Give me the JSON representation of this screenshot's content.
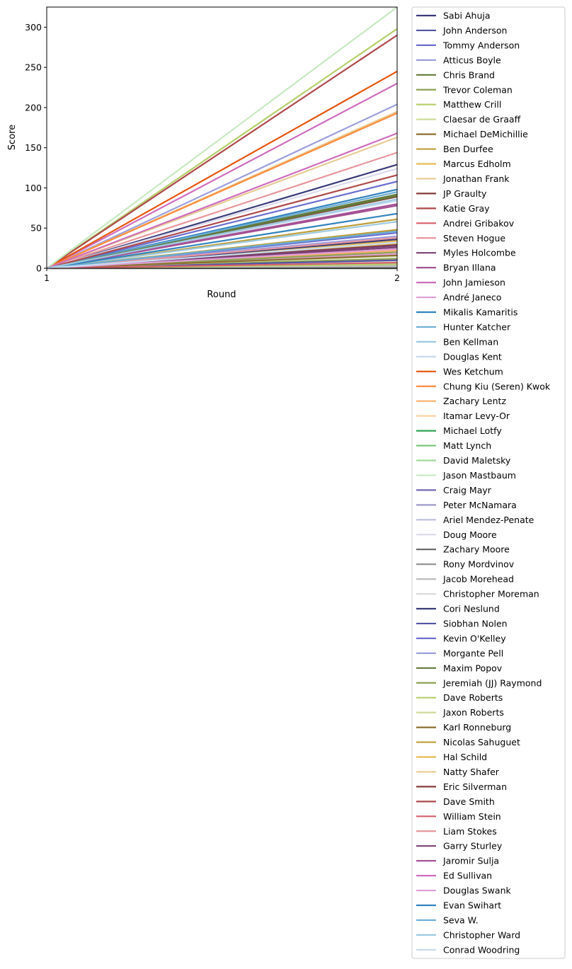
{
  "chart_data": {
    "type": "line",
    "title": "",
    "xlabel": "Round",
    "ylabel": "Score",
    "x": [
      1,
      2
    ],
    "xticks": [
      "1",
      "2"
    ],
    "xlim": [
      1,
      2
    ],
    "ylim": [
      0,
      325
    ],
    "yticks": [
      "0",
      "50",
      "100",
      "150",
      "200",
      "250",
      "300"
    ],
    "grid": false,
    "legend_placement": "outside-right",
    "series": [
      {
        "name": "Sabi Ahuja",
        "color": "#393b79",
        "values": [
          0,
          129
        ]
      },
      {
        "name": "John Anderson",
        "color": "#5254a3",
        "values": [
          0,
          30
        ]
      },
      {
        "name": "Tommy Anderson",
        "color": "#6b6ecf",
        "values": [
          0,
          108
        ]
      },
      {
        "name": "Atticus Boyle",
        "color": "#9c9ede",
        "values": [
          0,
          204
        ]
      },
      {
        "name": "Chris Brand",
        "color": "#637939",
        "values": [
          0,
          92
        ]
      },
      {
        "name": "Trevor Coleman",
        "color": "#8ca252",
        "values": [
          0,
          12
        ]
      },
      {
        "name": "Matthew Crill",
        "color": "#b5cf6b",
        "values": [
          0,
          298
        ]
      },
      {
        "name": "Claesar de Graaff",
        "color": "#cedb9c",
        "values": [
          0,
          8
        ]
      },
      {
        "name": "Michael DeMichillie",
        "color": "#8c6d31",
        "values": [
          0,
          47
        ]
      },
      {
        "name": "Ben Durfee",
        "color": "#bd9e39",
        "values": [
          0,
          61
        ]
      },
      {
        "name": "Marcus Edholm",
        "color": "#e7ba52",
        "values": [
          0,
          34
        ]
      },
      {
        "name": "Jonathan Frank",
        "color": "#e7cb94",
        "values": [
          0,
          195
        ]
      },
      {
        "name": "JP Graulty",
        "color": "#843c39",
        "values": [
          0,
          89
        ]
      },
      {
        "name": "Katie Gray",
        "color": "#ad494a",
        "values": [
          0,
          290
        ]
      },
      {
        "name": "Andrei Gribakov",
        "color": "#d6616b",
        "values": [
          0,
          5
        ]
      },
      {
        "name": "Steven Hogue",
        "color": "#e7969c",
        "values": [
          0,
          144
        ]
      },
      {
        "name": "Myles Holcombe",
        "color": "#7b4173",
        "values": [
          0,
          26
        ]
      },
      {
        "name": "Bryan Illana",
        "color": "#a55194",
        "values": [
          0,
          78
        ]
      },
      {
        "name": "John Jamieson",
        "color": "#ce6dbd",
        "values": [
          0,
          230
        ]
      },
      {
        "name": "André Janeco",
        "color": "#de9ed6",
        "values": [
          0,
          18
        ]
      },
      {
        "name": "Mikalis Kamaritis",
        "color": "#3182bd",
        "values": [
          0,
          98
        ]
      },
      {
        "name": "Hunter Katcher",
        "color": "#6baed6",
        "values": [
          0,
          95
        ]
      },
      {
        "name": "Ben Kellman",
        "color": "#9ecae1",
        "values": [
          0,
          58
        ]
      },
      {
        "name": "Douglas Kent",
        "color": "#c6dbef",
        "values": [
          0,
          84
        ]
      },
      {
        "name": "Wes Ketchum",
        "color": "#e6550d",
        "values": [
          0,
          245
        ]
      },
      {
        "name": "Chung Kiu (Seren) Kwok",
        "color": "#fd8d3c",
        "values": [
          0,
          193
        ]
      },
      {
        "name": "Zachary Lentz",
        "color": "#fdae6b",
        "values": [
          0,
          22
        ]
      },
      {
        "name": "Itamar Levy-Or",
        "color": "#fdd0a2",
        "values": [
          0,
          2
        ]
      },
      {
        "name": "Michael Lotfy",
        "color": "#31a354",
        "values": [
          0,
          0
        ]
      },
      {
        "name": "Matt Lynch",
        "color": "#74c476",
        "values": [
          0,
          3
        ]
      },
      {
        "name": "David Maletsky",
        "color": "#a1d99b",
        "values": [
          0,
          6
        ]
      },
      {
        "name": "Jason Mastbaum",
        "color": "#c7e9c0",
        "values": [
          0,
          325
        ]
      },
      {
        "name": "Craig Mayr",
        "color": "#756bb1",
        "values": [
          0,
          1
        ]
      },
      {
        "name": "Peter McNamara",
        "color": "#9e9ac8",
        "values": [
          0,
          4
        ]
      },
      {
        "name": "Ariel Mendez-Penate",
        "color": "#bcbddc",
        "values": [
          0,
          2
        ]
      },
      {
        "name": "Doug Moore",
        "color": "#dadaeb",
        "values": [
          0,
          124
        ]
      },
      {
        "name": "Zachary Moore",
        "color": "#636363",
        "values": [
          0,
          0
        ]
      },
      {
        "name": "Rony Mordvinov",
        "color": "#969696",
        "values": [
          0,
          1
        ]
      },
      {
        "name": "Jacob Morehead",
        "color": "#bdbdbd",
        "values": [
          0,
          3
        ]
      },
      {
        "name": "Christopher Moreman",
        "color": "#d9d9d9",
        "values": [
          0,
          9
        ]
      },
      {
        "name": "Cori Neslund",
        "color": "#393b79",
        "values": [
          0,
          36
        ]
      },
      {
        "name": "Siobhan Nolen",
        "color": "#5254a3",
        "values": [
          0,
          10
        ]
      },
      {
        "name": "Kevin O'Kelley",
        "color": "#6b6ecf",
        "values": [
          0,
          44
        ]
      },
      {
        "name": "Morgante Pell",
        "color": "#9c9ede",
        "values": [
          0,
          40
        ]
      },
      {
        "name": "Maxim Popov",
        "color": "#637939",
        "values": [
          0,
          90
        ]
      },
      {
        "name": "Jeremiah (JJ) Raymond",
        "color": "#8ca252",
        "values": [
          0,
          20
        ]
      },
      {
        "name": "Dave Roberts",
        "color": "#b5cf6b",
        "values": [
          0,
          5
        ]
      },
      {
        "name": "Jaxon Roberts",
        "color": "#cedb9c",
        "values": [
          0,
          15
        ]
      },
      {
        "name": "Karl Ronneburg",
        "color": "#8c6d31",
        "values": [
          0,
          16
        ]
      },
      {
        "name": "Nicolas Sahuguet",
        "color": "#bd9e39",
        "values": [
          0,
          48
        ]
      },
      {
        "name": "Hal Schild",
        "color": "#e7ba52",
        "values": [
          0,
          31
        ]
      },
      {
        "name": "Natty Shafer",
        "color": "#e7cb94",
        "values": [
          0,
          163
        ]
      },
      {
        "name": "Eric Silverman",
        "color": "#843c39",
        "values": [
          0,
          29
        ]
      },
      {
        "name": "Dave Smith",
        "color": "#ad494a",
        "values": [
          0,
          116
        ]
      },
      {
        "name": "William Stein",
        "color": "#d6616b",
        "values": [
          0,
          7
        ]
      },
      {
        "name": "Liam Stokes",
        "color": "#e7969c",
        "values": [
          0,
          38
        ]
      },
      {
        "name": "Garry Sturley",
        "color": "#7b4173",
        "values": [
          0,
          28
        ]
      },
      {
        "name": "Jaromir Sulja",
        "color": "#a55194",
        "values": [
          0,
          80
        ]
      },
      {
        "name": "Ed Sullivan",
        "color": "#ce6dbd",
        "values": [
          0,
          168
        ]
      },
      {
        "name": "Douglas Swank",
        "color": "#de9ed6",
        "values": [
          0,
          24
        ]
      },
      {
        "name": "Evan Swihart",
        "color": "#3182bd",
        "values": [
          0,
          68
        ]
      },
      {
        "name": "Seva W.",
        "color": "#6baed6",
        "values": [
          0,
          46
        ]
      },
      {
        "name": "Christopher Ward",
        "color": "#9ecae1",
        "values": [
          0,
          86
        ]
      },
      {
        "name": "Conrad Woodring",
        "color": "#c6dbef",
        "values": [
          0,
          32
        ]
      }
    ]
  }
}
